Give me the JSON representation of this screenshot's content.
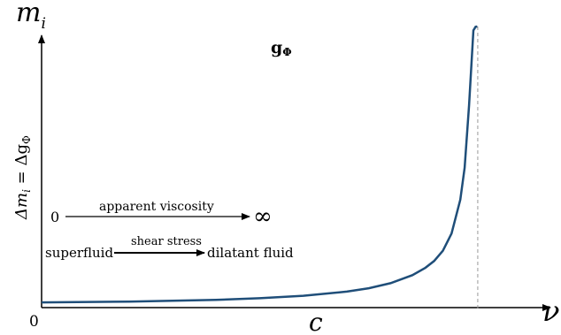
{
  "chart_data": {
    "type": "line",
    "title": "",
    "xlabel": "ν",
    "ylabel": "m",
    "ylabel_sub": "i",
    "y_side_label": {
      "prefix": "Δm",
      "sub": "i",
      "suffix": " = Δg",
      "suffix_sub": "Φ"
    },
    "origin_label": "0",
    "critical_tick_label": "c",
    "curve_label": {
      "main": "g",
      "sub": "Φ"
    },
    "xlim": [
      0,
      1.13
    ],
    "ylim": [
      0,
      1
    ],
    "asymptote_x": 1,
    "asymptote_style": "dashed",
    "grid": false,
    "series": [
      {
        "color": "#1f4e79",
        "x": [
          0,
          0.2,
          0.4,
          0.5,
          0.6,
          0.7,
          0.75,
          0.8,
          0.85,
          0.88,
          0.9,
          0.92,
          0.94,
          0.96,
          0.97,
          0.98,
          0.99,
          0.995,
          0.999
        ],
        "y": [
          0.006,
          0.009,
          0.015,
          0.021,
          0.03,
          0.045,
          0.057,
          0.075,
          0.104,
          0.131,
          0.155,
          0.192,
          0.254,
          0.376,
          0.491,
          0.716,
          0.986,
          0.999,
          1.0
        ]
      }
    ],
    "annotations": [
      {
        "from": "0",
        "label": "apparent viscosity",
        "to": "∞"
      },
      {
        "from": "superfluid",
        "label": "shear stress",
        "to": "dilatant fluid"
      }
    ]
  }
}
